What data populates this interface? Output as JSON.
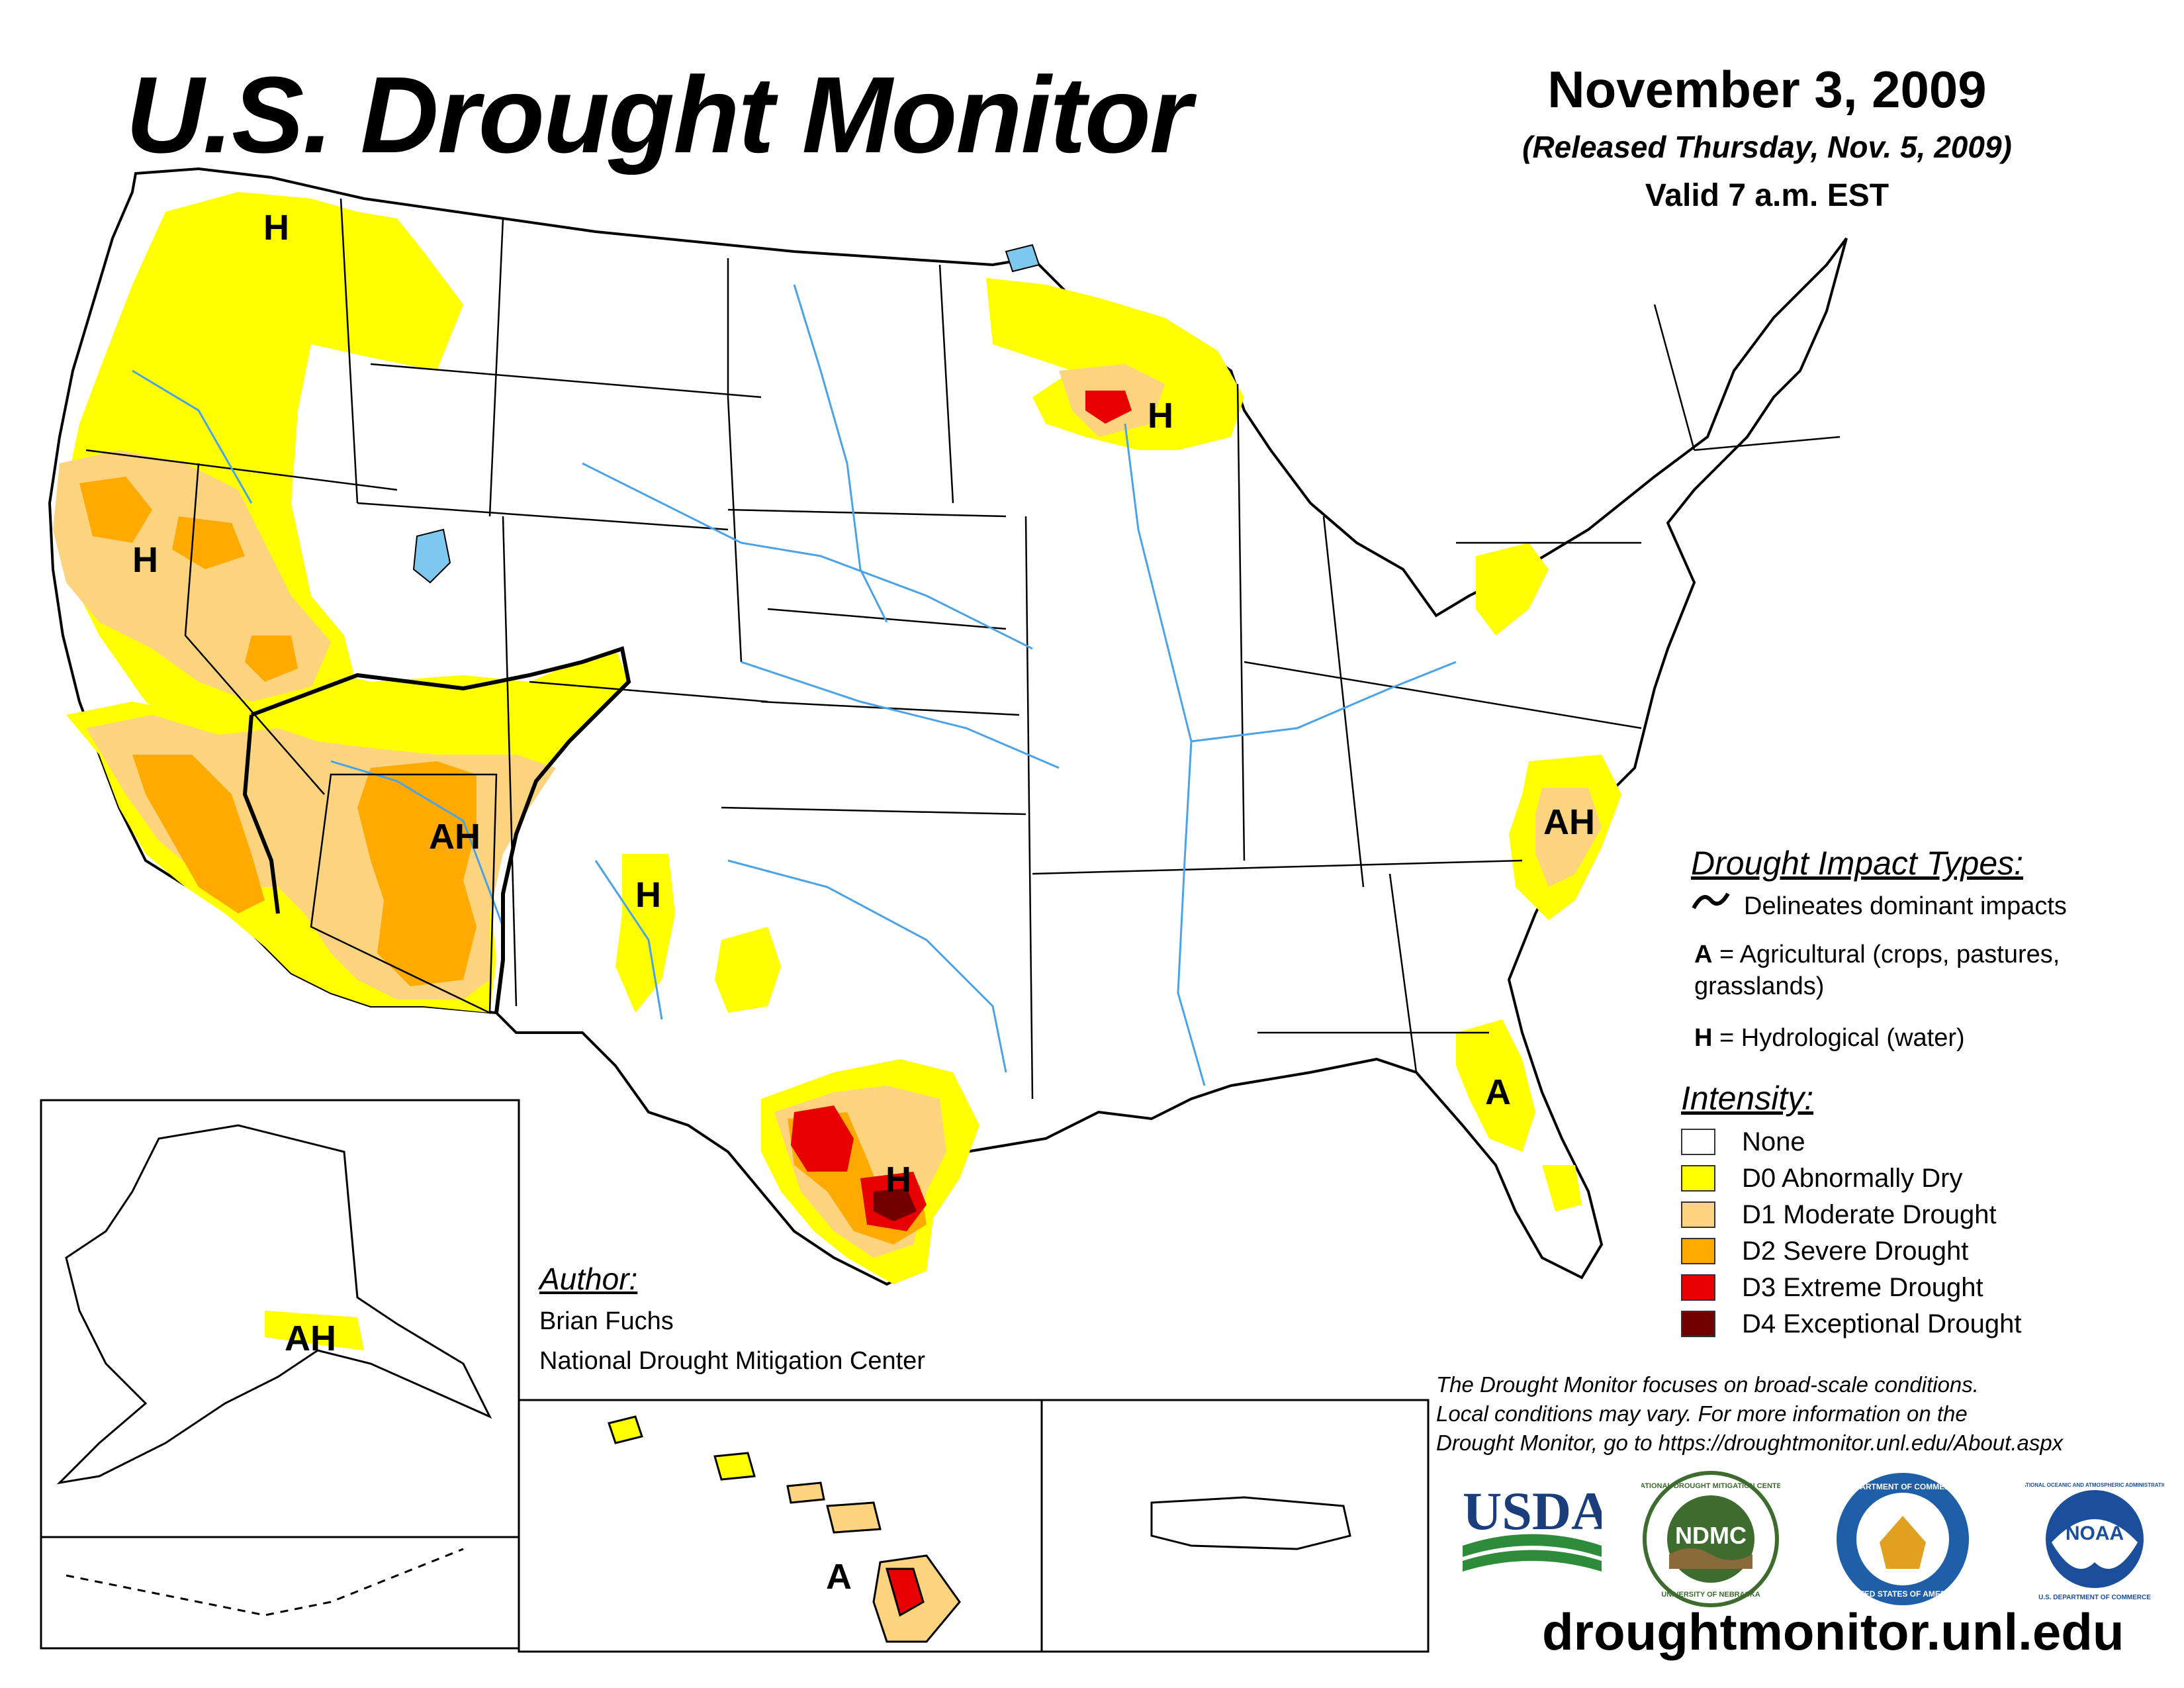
{
  "header": {
    "title": "U.S. Drought Monitor",
    "date": "November 3, 2009",
    "released": "(Released Thursday, Nov. 5, 2009)",
    "valid": "Valid 7 a.m. EST"
  },
  "map_labels": [
    "H",
    "H",
    "H",
    "AH",
    "H",
    "AH",
    "A",
    "H",
    "AH",
    "A"
  ],
  "impact_legend": {
    "title": "Drought Impact Types:",
    "delineates": "Delineates dominant impacts",
    "ag_code": "A",
    "ag_text": "= Agricultural (crops, pastures,",
    "ag_text2": "grasslands)",
    "hydro_code": "H",
    "hydro_text": "= Hydrological (water)"
  },
  "intensity_legend": {
    "title": "Intensity:",
    "items": [
      {
        "label": "None",
        "color": "#ffffff"
      },
      {
        "label": "D0 Abnormally Dry",
        "color": "#ffff00"
      },
      {
        "label": "D1 Moderate Drought",
        "color": "#fcd37f"
      },
      {
        "label": "D2 Severe Drought",
        "color": "#ffaa00"
      },
      {
        "label": "D3 Extreme Drought",
        "color": "#e60000"
      },
      {
        "label": "D4 Exceptional Drought",
        "color": "#730000"
      }
    ]
  },
  "author": {
    "title": "Author:",
    "name": "Brian Fuchs",
    "org": "National Drought Mitigation Center"
  },
  "note": {
    "line1": "The Drought Monitor focuses on broad-scale conditions.",
    "line2": "Local conditions may vary. For more information on the",
    "line3": "Drought Monitor, go to https://droughtmonitor.unl.edu/About.aspx"
  },
  "logos": {
    "usda": "USDA",
    "ndmc": "NDMC",
    "ndmc_ring": "NATIONAL DROUGHT MITIGATION CENTER",
    "ndmc_ring_bottom": "UNIVERSITY OF NEBRASKA",
    "commerce_ring": "DEPARTMENT OF COMMERCE",
    "commerce_ring_bottom": "UNITED STATES OF AMERICA",
    "noaa": "NOAA",
    "noaa_ring": "NATIONAL OCEANIC AND ATMOSPHERIC ADMINISTRATION",
    "noaa_ring_bottom": "U.S. DEPARTMENT OF COMMERCE"
  },
  "website": "droughtmonitor.unl.edu",
  "colors": {
    "d0": "#ffff00",
    "d1": "#fcd37f",
    "d2": "#ffaa00",
    "d3": "#e60000",
    "d4": "#730000",
    "water": "#7ec8f0",
    "usda_blue": "#1a3d7c",
    "usda_green": "#2e8b3a",
    "ndmc_green": "#3e6b2e",
    "commerce_blue": "#1f5fa8",
    "noaa_blue": "#1b4f9c"
  }
}
